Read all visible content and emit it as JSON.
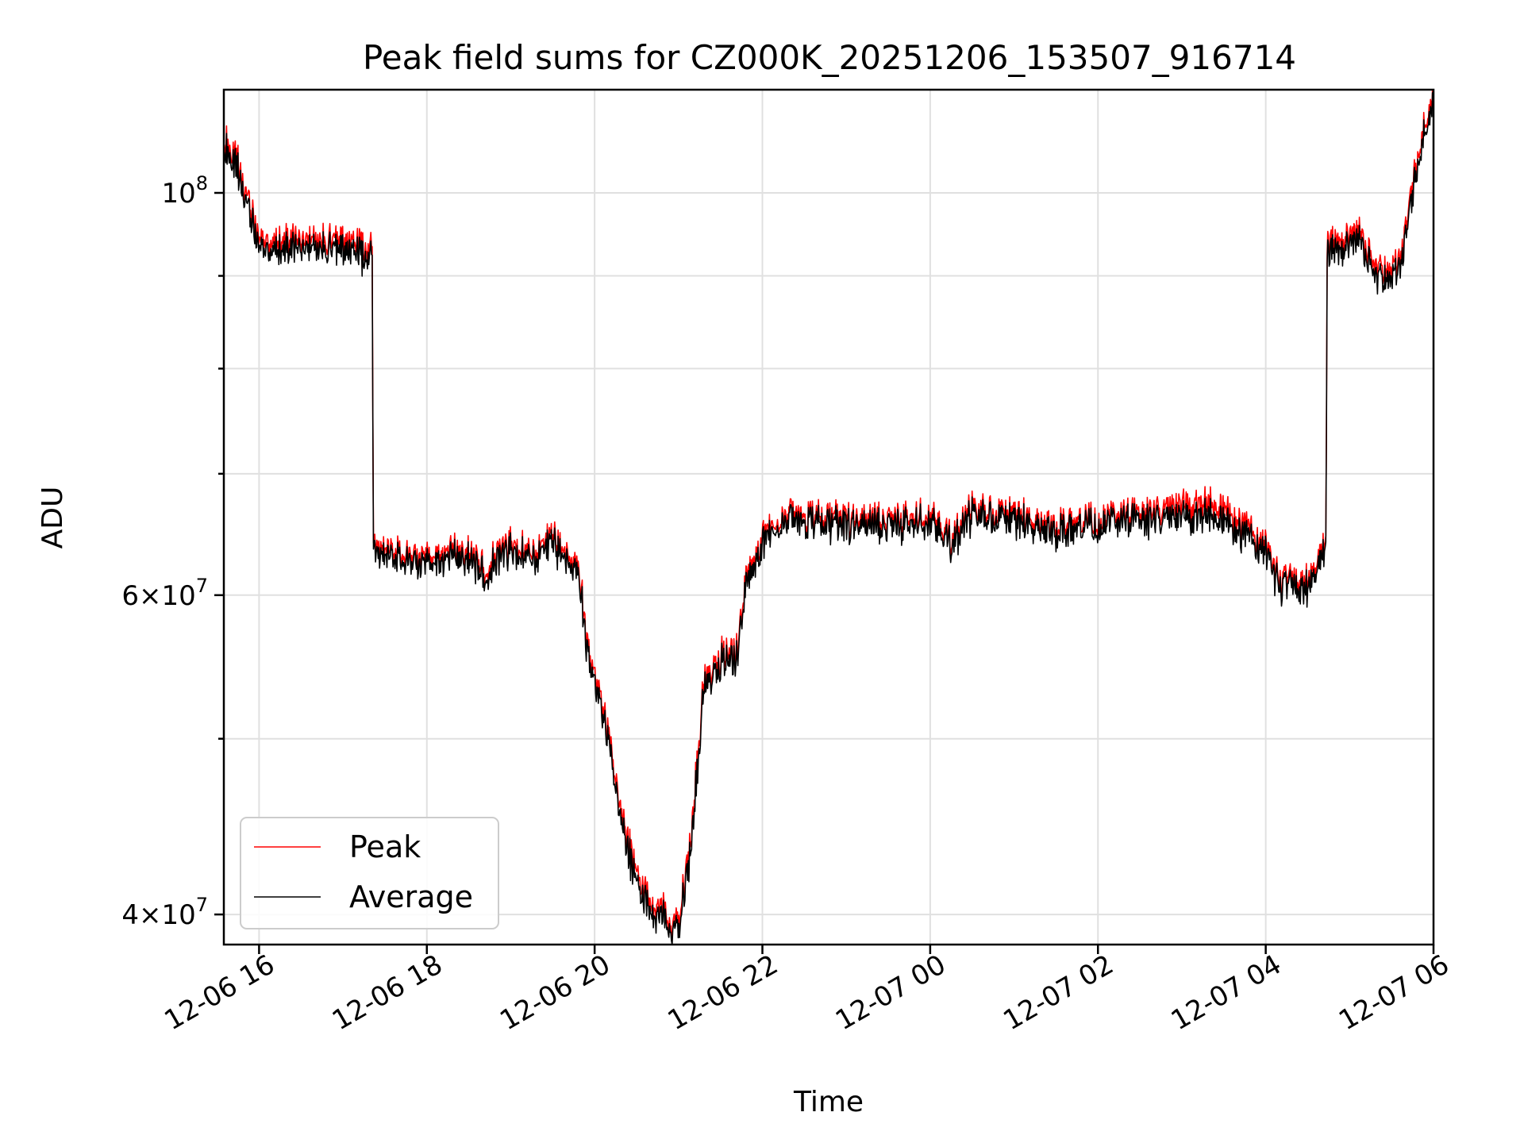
{
  "chart_data": {
    "type": "line",
    "title": "Peak field sums for CZ000K_20251206_153507_916714",
    "xlabel": "Time",
    "ylabel": "ADU",
    "yscale": "log",
    "xlim_hours": [
      15.58,
      30.0
    ],
    "ylim": [
      38500000,
      114000000
    ],
    "x_ticks": [
      {
        "label": "12-06 16",
        "hour": 16
      },
      {
        "label": "12-06 18",
        "hour": 18
      },
      {
        "label": "12-06 20",
        "hour": 20
      },
      {
        "label": "12-06 22",
        "hour": 22
      },
      {
        "label": "12-07 00",
        "hour": 24
      },
      {
        "label": "12-07 02",
        "hour": 26
      },
      {
        "label": "12-07 04",
        "hour": 28
      },
      {
        "label": "12-07 06",
        "hour": 30
      }
    ],
    "y_major_ticks": [
      {
        "base": "4",
        "exp": "7",
        "value": 40000000
      },
      {
        "base": "6",
        "exp": "7",
        "value": 60000000
      },
      {
        "base": "",
        "exp": "8",
        "value": 100000000
      }
    ],
    "y_minor_ticks": [
      50000000,
      70000000,
      80000000,
      90000000
    ],
    "grid": true,
    "legend_position": "lower-left",
    "series": [
      {
        "name": "Peak",
        "color": "#ff0000",
        "hours": [
          15.58,
          15.75,
          15.88,
          16.0,
          16.3,
          16.6,
          17.0,
          17.3,
          17.35,
          17.36,
          17.5,
          18.0,
          18.5,
          18.7,
          18.9,
          19.0,
          19.3,
          19.5,
          19.8,
          19.9,
          20.0,
          20.15,
          20.3,
          20.5,
          20.7,
          20.8,
          20.9,
          21.0,
          21.15,
          21.3,
          21.5,
          21.7,
          21.8,
          22.0,
          22.2,
          22.5,
          23.0,
          23.5,
          24.0,
          24.25,
          24.5,
          25.0,
          25.5,
          26.0,
          26.5,
          27.0,
          27.5,
          28.0,
          28.1,
          28.2,
          28.3,
          28.5,
          28.6,
          28.72,
          28.73,
          28.9,
          29.1,
          29.2,
          29.4,
          29.6,
          29.8,
          30.0
        ],
        "values": [
          106500000,
          104000000,
          98000000,
          94500000,
          94000000,
          94500000,
          94000000,
          93000000,
          93500000,
          64000000,
          63500000,
          63000000,
          63500000,
          62000000,
          63500000,
          64000000,
          63500000,
          64500000,
          62500000,
          57000000,
          54000000,
          51000000,
          46000000,
          42000000,
          40300000,
          40700000,
          39100000,
          39800000,
          44000000,
          54000000,
          55500000,
          56000000,
          61000000,
          64500000,
          66000000,
          66500000,
          66000000,
          66000000,
          66500000,
          64500000,
          67000000,
          66500000,
          65500000,
          66000000,
          66500000,
          67500000,
          67000000,
          64000000,
          62000000,
          61000000,
          61500000,
          61000000,
          62000000,
          64500000,
          93500000,
          94000000,
          95500000,
          93000000,
          90500000,
          92000000,
          104000000,
          114000000
        ]
      },
      {
        "name": "Average",
        "color": "#000000",
        "hours": [
          15.58,
          15.75,
          15.88,
          16.0,
          16.3,
          16.6,
          17.0,
          17.3,
          17.35,
          17.36,
          17.5,
          18.0,
          18.5,
          18.7,
          18.9,
          19.0,
          19.3,
          19.5,
          19.8,
          19.9,
          20.0,
          20.15,
          20.3,
          20.5,
          20.7,
          20.8,
          20.9,
          21.0,
          21.15,
          21.3,
          21.5,
          21.7,
          21.8,
          22.0,
          22.2,
          22.5,
          23.0,
          23.5,
          24.0,
          24.25,
          24.5,
          25.0,
          25.5,
          26.0,
          26.5,
          27.0,
          27.5,
          28.0,
          28.1,
          28.2,
          28.3,
          28.5,
          28.6,
          28.72,
          28.73,
          28.9,
          29.1,
          29.2,
          29.4,
          29.6,
          29.8,
          30.0
        ],
        "values": [
          105500000,
          103000000,
          97000000,
          93500000,
          93000000,
          93500000,
          93000000,
          92000000,
          92500000,
          63500000,
          63000000,
          62500000,
          63000000,
          61500000,
          63000000,
          63500000,
          63000000,
          64000000,
          62000000,
          56500000,
          53500000,
          50500000,
          45500000,
          41500000,
          39900000,
          40300000,
          38800000,
          39400000,
          43500000,
          53500000,
          55000000,
          55500000,
          60500000,
          64000000,
          65500000,
          66000000,
          65500000,
          65500000,
          66000000,
          64000000,
          66500000,
          66000000,
          65000000,
          65500000,
          66000000,
          66500000,
          66000000,
          63500000,
          61500000,
          60500000,
          61000000,
          60500000,
          61500000,
          64000000,
          92500000,
          93000000,
          94500000,
          92000000,
          89500000,
          91000000,
          103000000,
          113000000
        ]
      }
    ]
  }
}
